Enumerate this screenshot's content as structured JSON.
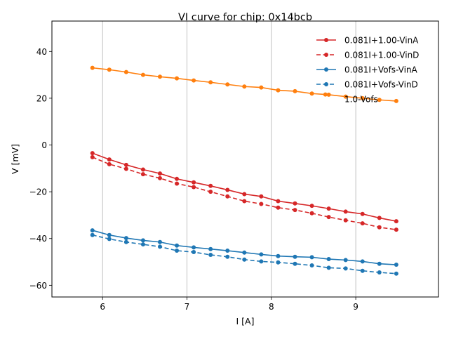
{
  "chart_data": {
    "type": "line",
    "title": "VI curve for chip: 0x14bcb",
    "xlabel": "I [A]",
    "ylabel": "V [mV]",
    "xlim": [
      5.4,
      9.98
    ],
    "ylim": [
      -65,
      53
    ],
    "xticks": [
      6,
      7,
      8,
      9
    ],
    "yticks": [
      40,
      20,
      0,
      -20,
      -40,
      -60
    ],
    "ytick_labels": [
      "40",
      "20",
      "0",
      "−20",
      "−40",
      "−60"
    ],
    "grid": "x-only",
    "legend_position": "top-right",
    "x": [
      5.88,
      6.08,
      6.28,
      6.48,
      6.68,
      6.88,
      7.08,
      7.28,
      7.48,
      7.68,
      7.88,
      8.08,
      8.28,
      8.48,
      8.68,
      8.88,
      9.08,
      9.28,
      9.48
    ],
    "series": [
      {
        "name": "0.081I+1.00-VinA",
        "color": "#d62728",
        "style": "solid",
        "marker": "circle",
        "values": [
          -3.5,
          -6.2,
          -8.5,
          -10.5,
          -12.2,
          -14.5,
          -16.0,
          -17.5,
          -19.2,
          -21.0,
          -22.0,
          -24.0,
          -25.0,
          -26.0,
          -27.2,
          -28.5,
          -29.5,
          -31.2,
          -32.6
        ]
      },
      {
        "name": "0.081I+1.00-VinD",
        "color": "#d62728",
        "style": "dashed",
        "marker": "circle",
        "values": [
          -5.2,
          -8.2,
          -10.2,
          -12.5,
          -14.2,
          -16.5,
          -18.0,
          -20.0,
          -22.0,
          -24.0,
          -25.2,
          -26.8,
          -27.8,
          -29.2,
          -30.8,
          -32.2,
          -33.5,
          -35.2,
          -36.2
        ]
      },
      {
        "name": "0.081I+Vofs-VinA",
        "color": "#1f77b4",
        "style": "solid",
        "marker": "circle",
        "values": [
          -36.5,
          -38.5,
          -39.8,
          -40.8,
          -41.5,
          -43.0,
          -43.8,
          -44.5,
          -45.2,
          -46.0,
          -46.8,
          -47.5,
          -47.8,
          -48.0,
          -48.8,
          -49.2,
          -49.8,
          -50.8,
          -51.2
        ]
      },
      {
        "name": "0.081I+Vofs-VinD",
        "color": "#1f77b4",
        "style": "dashed",
        "marker": "circle",
        "values": [
          -38.5,
          -40.2,
          -41.5,
          -42.5,
          -43.5,
          -45.2,
          -45.8,
          -47.0,
          -47.8,
          -49.0,
          -49.8,
          -50.2,
          -50.8,
          -51.5,
          -52.5,
          -52.8,
          -53.8,
          -54.5,
          -55.0
        ]
      },
      {
        "name": "1.0-Vofs",
        "color": "#ff7f0e",
        "style": "solid",
        "marker": "circle",
        "x": [
          5.88,
          6.08,
          6.28,
          6.48,
          6.68,
          6.88,
          7.08,
          7.28,
          7.48,
          7.68,
          7.88,
          8.08,
          8.28,
          8.48,
          8.64,
          8.68,
          8.88,
          9.08,
          9.28,
          9.48
        ],
        "values": [
          33.0,
          32.2,
          31.2,
          30.0,
          29.2,
          28.5,
          27.6,
          26.8,
          25.9,
          25.0,
          24.6,
          23.4,
          23.0,
          22.0,
          21.6,
          21.5,
          20.7,
          20.0,
          19.3,
          18.8
        ]
      }
    ]
  }
}
